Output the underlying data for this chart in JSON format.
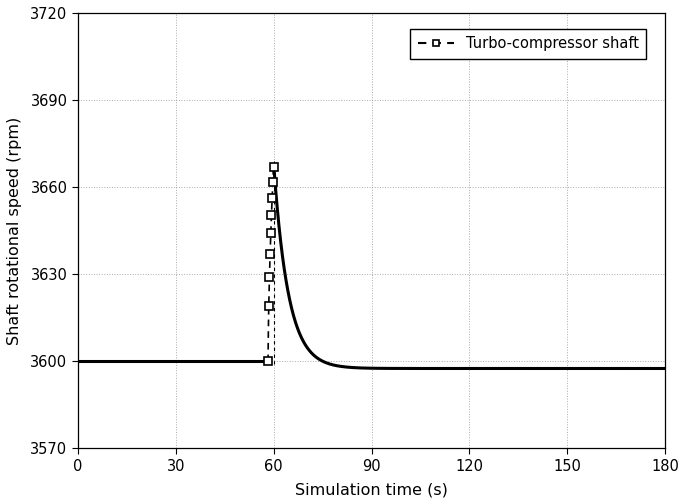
{
  "title": "",
  "xlabel": "Simulation time (s)",
  "ylabel": "Shaft rotational speed (rpm)",
  "xlim": [
    0,
    180
  ],
  "ylim": [
    3570,
    3720
  ],
  "xticks": [
    0,
    30,
    60,
    90,
    120,
    150,
    180
  ],
  "yticks": [
    3570,
    3600,
    3630,
    3660,
    3690,
    3720
  ],
  "legend_label": "Turbo-compressor shaft",
  "line_color": "#000000",
  "grid_color": "#888888",
  "background_color": "#ffffff",
  "steady_value": 3600,
  "peak_value": 3668,
  "event_time": 60,
  "rise_start": 58.3,
  "decay_tau": 4.5,
  "undershoot": 2.5,
  "dpi": 100,
  "figsize": [
    6.86,
    5.04
  ]
}
